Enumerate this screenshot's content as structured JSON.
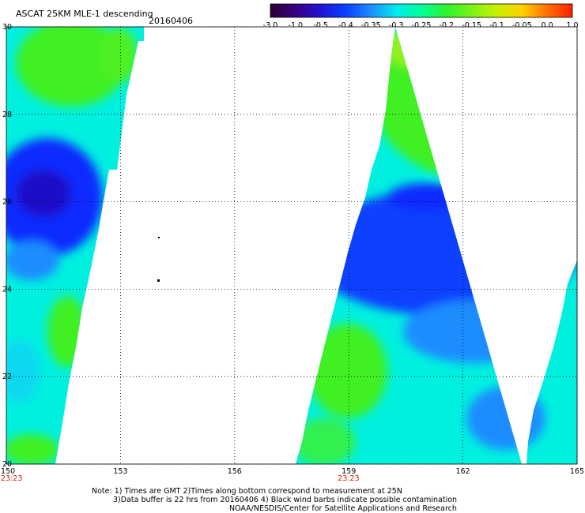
{
  "header": {
    "title": "ASCAT 25KM MLE-1 descending",
    "date": "20160406"
  },
  "colorbar": {
    "labels": [
      "-3.0",
      "-1.0",
      "-0.5",
      "-0.4",
      "-0.35",
      "-0.3",
      "-0.25",
      "-0.2",
      "-0.15",
      "-0.1",
      "-0.05",
      "0.0",
      "1.0"
    ],
    "stops": [
      "#2a0033",
      "#3a0080",
      "#1e14d8",
      "#0a40ff",
      "#1e8cff",
      "#00ecec",
      "#00ff9a",
      "#2cf22c",
      "#7cf218",
      "#c8f000",
      "#ffd000",
      "#ff7000",
      "#ff2000"
    ]
  },
  "map": {
    "lon_range": [
      150,
      165
    ],
    "lat_range": [
      20,
      30
    ],
    "lon_ticks": [
      "150",
      "153",
      "156",
      "159",
      "162",
      "165"
    ],
    "lat_ticks": [
      "30",
      "28",
      "26",
      "24",
      "22",
      "20"
    ],
    "pass_times": [
      {
        "label": "23:23",
        "lon": 150
      },
      {
        "label": "23:23",
        "lon": 159
      }
    ],
    "colors": {
      "low": "#0a2aff",
      "mid": "#00f0e0",
      "high": "#40f020",
      "time_label": "#cc2200"
    }
  },
  "footer": {
    "line1": "Note: 1) Times are GMT 2)Times along bottom correspond to measurement at 25N",
    "line2": "3)Data buffer is 22 hrs from 20160406 4) Black wind barbs indicate possible contamination",
    "line3": "NOAA/NESDIS/Center for Satellite Applications and Research"
  }
}
